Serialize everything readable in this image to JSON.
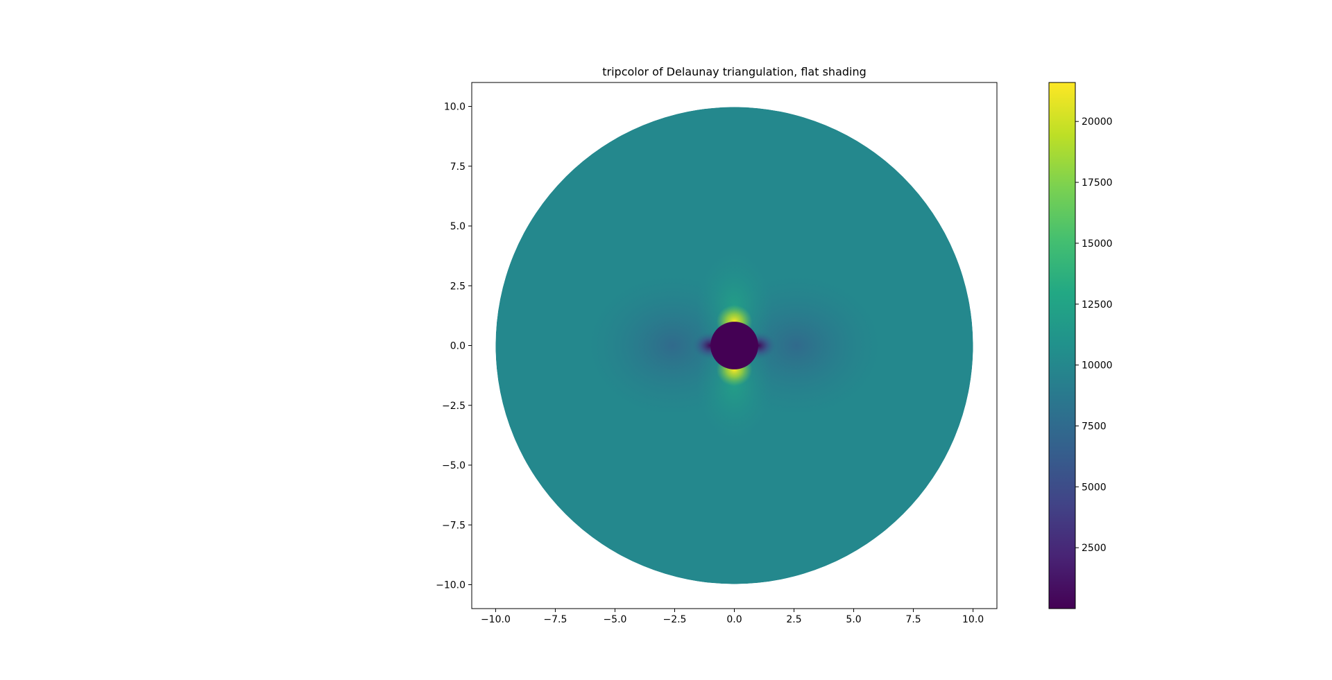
{
  "chart_data": {
    "type": "heatmap",
    "title": "tripcolor of Delaunay triangulation, flat shading",
    "xlabel": "",
    "ylabel": "",
    "xlim": [
      -11.0,
      11.0
    ],
    "ylim": [
      -11.0,
      11.0
    ],
    "grid": false,
    "colormap": "viridis",
    "x_ticks": [
      -10.0,
      -7.5,
      -5.0,
      -2.5,
      0.0,
      2.5,
      5.0,
      7.5,
      10.0
    ],
    "x_tick_labels": [
      "−10.0",
      "−7.5",
      "−5.0",
      "−2.5",
      "0.0",
      "2.5",
      "5.0",
      "7.5",
      "10.0"
    ],
    "y_ticks": [
      10.0,
      7.5,
      5.0,
      2.5,
      0.0,
      -2.5,
      -5.0,
      -7.5,
      -10.0
    ],
    "y_tick_labels": [
      "10.0",
      "7.5",
      "5.0",
      "2.5",
      "0.0",
      "−2.5",
      "−5.0",
      "−7.5",
      "−10.0"
    ],
    "domain": {
      "shape": "annulus",
      "center": [
        0.0,
        0.0
      ],
      "outer_radius": 10.0,
      "inner_radius": 1.0,
      "inner_value": 0,
      "far_field_value": 10000,
      "peak_value": 21500,
      "peak_locations": [
        [
          0.0,
          1.0
        ],
        [
          0.0,
          -1.0
        ]
      ],
      "low_locations": [
        [
          -1.0,
          0.0
        ],
        [
          1.0,
          0.0
        ]
      ]
    },
    "colorbar": {
      "vmin": 0,
      "vmax": 21600,
      "ticks": [
        2500,
        5000,
        7500,
        10000,
        12500,
        15000,
        17500,
        20000
      ],
      "tick_labels": [
        "2500",
        "5000",
        "7500",
        "10000",
        "12500",
        "15000",
        "17500",
        "20000"
      ]
    }
  }
}
